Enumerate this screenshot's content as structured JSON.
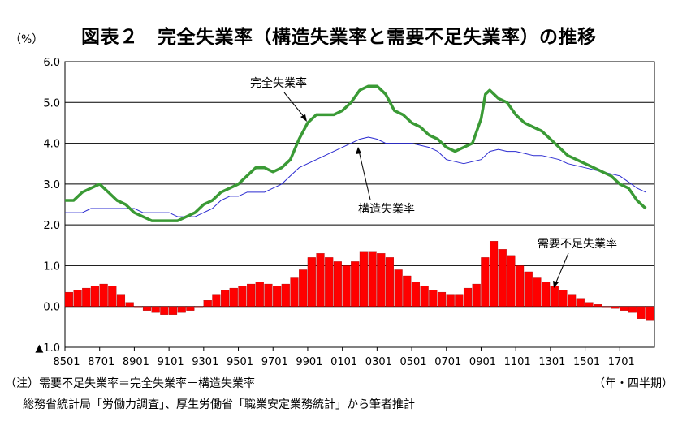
{
  "chart_data": {
    "type": "line",
    "title": "図表２　完全失業率（構造失業率と需要不足失業率）の推移",
    "ylabel": "（%）",
    "xunit": "（年・四半期）",
    "ylim": [
      -1.0,
      6.0
    ],
    "yticks": [
      {
        "value": 6.0,
        "label": "6.0"
      },
      {
        "value": 5.0,
        "label": "5.0"
      },
      {
        "value": 4.0,
        "label": "4.0"
      },
      {
        "value": 3.0,
        "label": "3.0"
      },
      {
        "value": 2.0,
        "label": "2.0"
      },
      {
        "value": 1.0,
        "label": "1.0"
      },
      {
        "value": 0.0,
        "label": "0.0"
      },
      {
        "value": -1.0,
        "label": "▲1.0"
      }
    ],
    "xticks": [
      "8501",
      "8701",
      "8901",
      "9101",
      "9301",
      "9501",
      "9701",
      "9901",
      "0101",
      "0301",
      "0501",
      "0701",
      "0901",
      "1101",
      "1301",
      "1501",
      "1701"
    ],
    "grid": true,
    "annotations": {
      "total": "完全失業率",
      "structural": "構造失業率",
      "demand": "需要不足失業率"
    },
    "series": [
      {
        "name": "完全失業率",
        "type": "line",
        "color": "#3a9a35",
        "x": [
          1985.0,
          1985.5,
          1986.0,
          1986.5,
          1987.0,
          1987.5,
          1988.0,
          1988.5,
          1989.0,
          1989.5,
          1990.0,
          1990.5,
          1991.0,
          1991.5,
          1992.0,
          1992.5,
          1993.0,
          1993.5,
          1994.0,
          1994.5,
          1995.0,
          1995.5,
          1996.0,
          1996.5,
          1997.0,
          1997.5,
          1998.0,
          1998.5,
          1999.0,
          1999.5,
          2000.0,
          2000.5,
          2001.0,
          2001.5,
          2002.0,
          2002.5,
          2003.0,
          2003.5,
          2004.0,
          2004.5,
          2005.0,
          2005.5,
          2006.0,
          2006.5,
          2007.0,
          2007.5,
          2008.0,
          2008.5,
          2009.0,
          2009.25,
          2009.5,
          2010.0,
          2010.5,
          2011.0,
          2011.5,
          2012.0,
          2012.5,
          2013.0,
          2013.5,
          2014.0,
          2014.5,
          2015.0,
          2015.5,
          2016.0,
          2016.5,
          2017.0,
          2017.5,
          2018.0,
          2018.5
        ],
        "values": [
          2.6,
          2.6,
          2.8,
          2.9,
          3.0,
          2.8,
          2.6,
          2.5,
          2.3,
          2.2,
          2.1,
          2.1,
          2.1,
          2.1,
          2.2,
          2.3,
          2.5,
          2.6,
          2.8,
          2.9,
          3.0,
          3.2,
          3.4,
          3.4,
          3.3,
          3.4,
          3.6,
          4.1,
          4.5,
          4.7,
          4.7,
          4.7,
          4.8,
          5.0,
          5.3,
          5.4,
          5.4,
          5.2,
          4.8,
          4.7,
          4.5,
          4.4,
          4.2,
          4.1,
          3.9,
          3.8,
          3.9,
          4.0,
          4.6,
          5.2,
          5.3,
          5.1,
          5.0,
          4.7,
          4.5,
          4.4,
          4.3,
          4.1,
          3.9,
          3.7,
          3.6,
          3.5,
          3.4,
          3.3,
          3.2,
          3.0,
          2.9,
          2.6,
          2.4
        ]
      },
      {
        "name": "構造失業率",
        "type": "line",
        "color": "#2a2ad0",
        "x": [
          1985.0,
          1985.5,
          1986.0,
          1986.5,
          1987.0,
          1987.5,
          1988.0,
          1988.5,
          1989.0,
          1989.5,
          1990.0,
          1990.5,
          1991.0,
          1991.5,
          1992.0,
          1992.5,
          1993.0,
          1993.5,
          1994.0,
          1994.5,
          1995.0,
          1995.5,
          1996.0,
          1996.5,
          1997.0,
          1997.5,
          1998.0,
          1998.5,
          1999.0,
          1999.5,
          2000.0,
          2000.5,
          2001.0,
          2001.5,
          2002.0,
          2002.5,
          2003.0,
          2003.5,
          2004.0,
          2004.5,
          2005.0,
          2005.5,
          2006.0,
          2006.5,
          2007.0,
          2007.5,
          2008.0,
          2008.5,
          2009.0,
          2009.5,
          2010.0,
          2010.5,
          2011.0,
          2011.5,
          2012.0,
          2012.5,
          2013.0,
          2013.5,
          2014.0,
          2014.5,
          2015.0,
          2015.5,
          2016.0,
          2016.5,
          2017.0,
          2017.5,
          2018.0,
          2018.5
        ],
        "values": [
          2.3,
          2.3,
          2.3,
          2.4,
          2.4,
          2.4,
          2.4,
          2.4,
          2.4,
          2.3,
          2.3,
          2.3,
          2.3,
          2.2,
          2.2,
          2.2,
          2.3,
          2.4,
          2.6,
          2.7,
          2.7,
          2.8,
          2.8,
          2.8,
          2.9,
          3.0,
          3.2,
          3.4,
          3.5,
          3.6,
          3.7,
          3.8,
          3.9,
          4.0,
          4.1,
          4.15,
          4.1,
          4.0,
          4.0,
          4.0,
          4.0,
          3.95,
          3.9,
          3.8,
          3.6,
          3.55,
          3.5,
          3.55,
          3.6,
          3.8,
          3.85,
          3.8,
          3.8,
          3.75,
          3.7,
          3.7,
          3.65,
          3.6,
          3.5,
          3.45,
          3.4,
          3.35,
          3.3,
          3.25,
          3.2,
          3.05,
          2.9,
          2.8
        ]
      },
      {
        "name": "需要不足失業率",
        "type": "bar",
        "color": "#ff0000",
        "x": [
          1985.0,
          1985.5,
          1986.0,
          1986.5,
          1987.0,
          1987.5,
          1988.0,
          1988.5,
          1989.0,
          1989.5,
          1990.0,
          1990.5,
          1991.0,
          1991.5,
          1992.0,
          1992.5,
          1993.0,
          1993.5,
          1994.0,
          1994.5,
          1995.0,
          1995.5,
          1996.0,
          1996.5,
          1997.0,
          1997.5,
          1998.0,
          1998.5,
          1999.0,
          1999.5,
          2000.0,
          2000.5,
          2001.0,
          2001.5,
          2002.0,
          2002.5,
          2003.0,
          2003.5,
          2004.0,
          2004.5,
          2005.0,
          2005.5,
          2006.0,
          2006.5,
          2007.0,
          2007.5,
          2008.0,
          2008.5,
          2009.0,
          2009.5,
          2010.0,
          2010.5,
          2011.0,
          2011.5,
          2012.0,
          2012.5,
          2013.0,
          2013.5,
          2014.0,
          2014.5,
          2015.0,
          2015.5,
          2016.0,
          2016.5,
          2017.0,
          2017.5,
          2018.0,
          2018.5
        ],
        "values": [
          0.35,
          0.4,
          0.45,
          0.5,
          0.55,
          0.5,
          0.3,
          0.1,
          0.0,
          -0.1,
          -0.15,
          -0.2,
          -0.2,
          -0.15,
          -0.1,
          0.0,
          0.15,
          0.3,
          0.4,
          0.45,
          0.5,
          0.55,
          0.6,
          0.55,
          0.5,
          0.55,
          0.7,
          0.9,
          1.2,
          1.3,
          1.2,
          1.1,
          1.0,
          1.1,
          1.35,
          1.35,
          1.3,
          1.2,
          0.9,
          0.75,
          0.6,
          0.5,
          0.4,
          0.35,
          0.3,
          0.3,
          0.45,
          0.55,
          1.2,
          1.6,
          1.4,
          1.25,
          1.0,
          0.85,
          0.7,
          0.6,
          0.5,
          0.4,
          0.3,
          0.2,
          0.1,
          0.05,
          0.0,
          -0.05,
          -0.1,
          -0.15,
          -0.3,
          -0.35
        ]
      }
    ]
  },
  "notes": {
    "note": "（注）需要不足失業率＝完全失業率－構造失業率",
    "source": "総務省統計局「労働力調査」、厚生労働省「職業安定業務統計」から筆者推計"
  }
}
